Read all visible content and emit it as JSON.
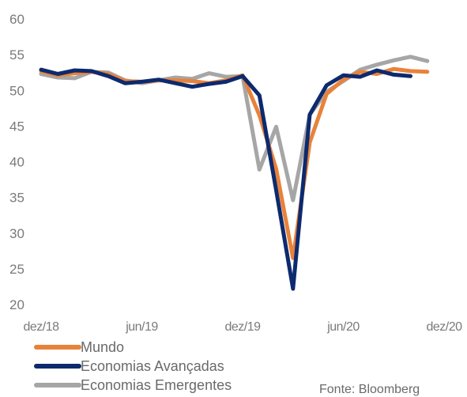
{
  "chart_data": {
    "type": "line",
    "title": "",
    "xlabel": "",
    "ylabel": "",
    "ylim": [
      20,
      60
    ],
    "yticks": [
      "20",
      "25",
      "30",
      "35",
      "40",
      "45",
      "50",
      "55",
      "60"
    ],
    "grid": false,
    "legend_position": "bottom-left",
    "x_tick_labels": [
      {
        "index": 0,
        "label": "dez/18"
      },
      {
        "index": 6,
        "label": "jun/19"
      },
      {
        "index": 12,
        "label": "dez/19"
      },
      {
        "index": 18,
        "label": "jun/20"
      },
      {
        "index": 24,
        "label": "dez/20"
      }
    ],
    "series": [
      {
        "name": "Mundo",
        "color": "#e8823a",
        "values": [
          52.7,
          52.1,
          52.4,
          52.6,
          52.3,
          51.3,
          51.2,
          51.4,
          51.4,
          51.3,
          51.0,
          51.4,
          52.1,
          46.5,
          39.0,
          26.5,
          42.7,
          49.5,
          51.5,
          52.6,
          52.3,
          53.0,
          52.7,
          52.6
        ]
      },
      {
        "name": "Economias Avançadas",
        "color": "#0d2a6e",
        "values": [
          52.9,
          52.3,
          52.8,
          52.7,
          52.0,
          51.0,
          51.2,
          51.5,
          51.0,
          50.5,
          50.9,
          51.2,
          52.0,
          49.3,
          36.0,
          22.2,
          46.6,
          50.7,
          52.1,
          51.9,
          52.8,
          52.2,
          52.0
        ]
      },
      {
        "name": "Economias Emergentes",
        "color": "#a6a6a6",
        "values": [
          52.3,
          51.8,
          51.7,
          52.6,
          52.5,
          51.4,
          51.0,
          51.4,
          51.8,
          51.6,
          52.4,
          51.9,
          52.0,
          38.9,
          44.9,
          34.6,
          46.6,
          49.8,
          51.3,
          52.9,
          53.6,
          54.2,
          54.7,
          54.1
        ]
      }
    ]
  },
  "source": "Fonte: Bloomberg"
}
